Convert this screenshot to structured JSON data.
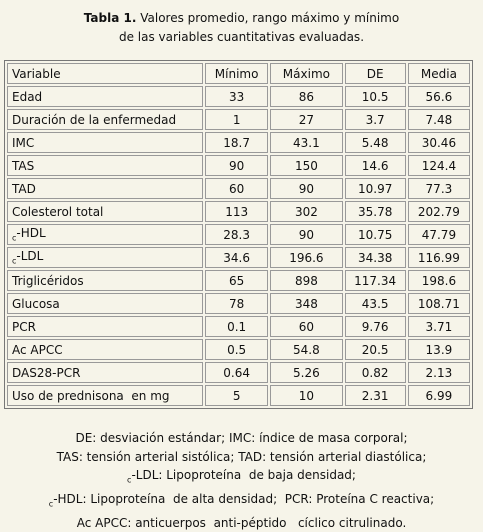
{
  "title": {
    "label": "Tabla 1.",
    "line1": "Valores promedio, rango máximo y mínimo",
    "line2": "de las variables cuantitativas  evaluadas."
  },
  "table": {
    "header": [
      "Variable",
      "Mínimo",
      "Máximo",
      "DE",
      "Media"
    ],
    "rows": [
      {
        "variable": "Edad",
        "values": [
          "33",
          "86",
          "10.5",
          "56.6"
        ]
      },
      {
        "variable": "Duración de la enfermedad",
        "values": [
          "1",
          "27",
          "3.7",
          "7.48"
        ]
      },
      {
        "variable": "IMC",
        "values": [
          "18.7",
          "43.1",
          "5.48",
          "30.46"
        ]
      },
      {
        "variable": "TAS",
        "values": [
          "90",
          "150",
          "14.6",
          "124.4"
        ]
      },
      {
        "variable": "TAD",
        "values": [
          "60",
          "90",
          "10.97",
          "77.3"
        ]
      },
      {
        "variable": "Colesterol total",
        "values": [
          "113",
          "302",
          "35.78",
          "202.79"
        ]
      },
      {
        "sub": "c",
        "variable": "-HDL",
        "values": [
          "28.3",
          "90",
          "10.75",
          "47.79"
        ]
      },
      {
        "sub": "c",
        "variable": "-LDL",
        "values": [
          "34.6",
          "196.6",
          "34.38",
          "116.99"
        ]
      },
      {
        "variable": "Triglicéridos",
        "values": [
          "65",
          "898",
          "117.34",
          "198.6"
        ]
      },
      {
        "variable": "Glucosa",
        "values": [
          "78",
          "348",
          "43.5",
          "108.71"
        ]
      },
      {
        "variable": "PCR",
        "values": [
          "0.1",
          "60",
          "9.76",
          "3.71"
        ]
      },
      {
        "variable": "Ac APCC",
        "values": [
          "0.5",
          "54.8",
          "20.5",
          "13.9"
        ]
      },
      {
        "variable": "DAS28-PCR",
        "values": [
          "0.64",
          "5.26",
          "0.82",
          "2.13"
        ]
      },
      {
        "variable": "Uso de prednisona  en mg",
        "values": [
          "5",
          "10",
          "2.31",
          "6.99"
        ]
      }
    ]
  },
  "footnotes": [
    {
      "text": "DE: desviación estándar; IMC: índice de masa corporal;"
    },
    {
      "text": "TAS: tensión arterial sistólica; TAD: tensión arterial diastólica;"
    },
    {
      "sub": "c",
      "text": "-LDL: Lipoproteína  de baja densidad;"
    },
    {
      "sub": "c",
      "text": "-HDL: Lipoproteína  de alta densidad;  PCR: Proteína C reactiva;"
    },
    {
      "text": "Ac APCC: anticuerpos  anti-péptido   cíclico citrulinado."
    }
  ]
}
